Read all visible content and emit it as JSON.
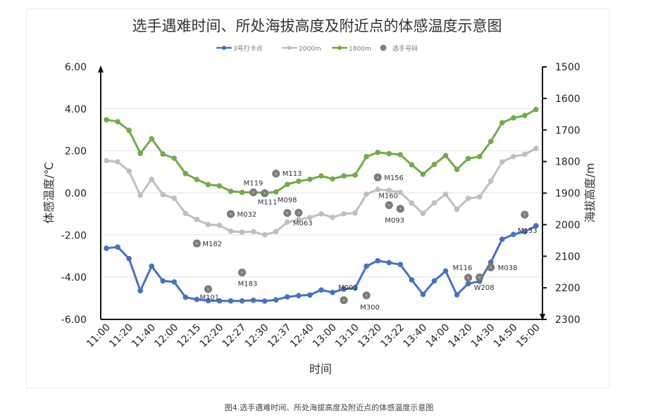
{
  "chart_data": {
    "type": "line",
    "title": "选手遇难时间、所处海拔高度及附近点的体感温度示意图",
    "xlabel": "时间",
    "ylabel": "体感温度/℃",
    "y2label": "海拔高度/m",
    "ylim": [
      -6,
      6
    ],
    "y2lim": [
      1500,
      2300
    ],
    "y2_inverted": true,
    "yticks": [
      "6.00",
      "4.00",
      "2.00",
      "0.00",
      "-2.00",
      "-4.00",
      "-6.00"
    ],
    "y2ticks": [
      "1500",
      "1600",
      "1700",
      "1800",
      "1900",
      "2000",
      "2100",
      "2200",
      "2300"
    ],
    "x_tick_labels": [
      "11:00",
      "11:20",
      "11:40",
      "12:00",
      "12:15",
      "12:20",
      "12:27",
      "12:30",
      "12:37",
      "12:40",
      "13:00",
      "13:10",
      "13:20",
      "13:22",
      "13:40",
      "14:00",
      "14:20",
      "14:30",
      "14:50",
      "15:00"
    ],
    "n_points": 39,
    "grid": true,
    "legend_position": "top",
    "series": [
      {
        "name": "3号打卡点",
        "color": "#4472C4",
        "values": [
          -2.64,
          -2.58,
          -3.13,
          -4.66,
          -3.49,
          -4.19,
          -4.24,
          -4.97,
          -5.07,
          -5.13,
          -5.14,
          -5.14,
          -5.14,
          -5.11,
          -5.15,
          -5.09,
          -4.95,
          -4.89,
          -4.86,
          -4.62,
          -4.74,
          -4.58,
          -4.53,
          -3.49,
          -3.23,
          -3.32,
          -3.41,
          -4.14,
          -4.83,
          -4.19,
          -3.72,
          -4.85,
          -4.32,
          -4.21,
          -3.3,
          -2.21,
          -1.98,
          -1.85,
          -1.57
        ]
      },
      {
        "name": "2000m",
        "color": "#BFBFBF",
        "values": [
          1.53,
          1.47,
          1.03,
          -0.12,
          0.64,
          -0.09,
          -0.26,
          -0.98,
          -1.27,
          -1.51,
          -1.55,
          -1.83,
          -1.87,
          -1.85,
          -2.0,
          -1.84,
          -1.4,
          -1.27,
          -1.18,
          -1.0,
          -1.17,
          -1.0,
          -0.96,
          -0.07,
          0.16,
          0.11,
          0.02,
          -0.49,
          -0.98,
          -0.48,
          -0.07,
          -0.79,
          -0.27,
          -0.2,
          0.56,
          1.47,
          1.72,
          1.83,
          2.11
        ]
      },
      {
        "name": "1800m",
        "color": "#70AD47",
        "values": [
          3.47,
          3.38,
          2.97,
          1.87,
          2.57,
          1.84,
          1.64,
          0.91,
          0.63,
          0.39,
          0.33,
          0.07,
          0.02,
          0.02,
          -0.01,
          0.04,
          0.4,
          0.55,
          0.64,
          0.8,
          0.66,
          0.8,
          0.84,
          1.72,
          1.92,
          1.86,
          1.81,
          1.33,
          0.88,
          1.35,
          1.77,
          1.11,
          1.63,
          1.72,
          2.44,
          3.33,
          3.56,
          3.67,
          3.96
        ]
      }
    ],
    "scatter": {
      "name": "选手号码",
      "color": "#808080",
      "points": [
        {
          "label": "M182",
          "x": 8.0,
          "y": -2.41
        },
        {
          "label": "M101",
          "x": 9.0,
          "y": -4.58
        },
        {
          "label": "M032",
          "x": 11.0,
          "y": -1.01
        },
        {
          "label": "M183",
          "x": 12.0,
          "y": -3.79
        },
        {
          "label": "M119",
          "x": 13.0,
          "y": 0.02
        },
        {
          "label": "M111",
          "x": 14.0,
          "y": -0.02
        },
        {
          "label": "M113",
          "x": 15.0,
          "y": 0.91
        },
        {
          "label": "M098",
          "x": 16.0,
          "y": -0.96
        },
        {
          "label": "M063",
          "x": 17.0,
          "y": -0.95
        },
        {
          "label": "M001",
          "x": 21.0,
          "y": -5.11
        },
        {
          "label": "M300",
          "x": 23.0,
          "y": -4.88
        },
        {
          "label": "M156",
          "x": 24.0,
          "y": 0.73
        },
        {
          "label": "M160",
          "x": 25.0,
          "y": -0.59
        },
        {
          "label": "M093",
          "x": 26.0,
          "y": -0.76
        },
        {
          "label": "M116",
          "x": 32.0,
          "y": -4.04
        },
        {
          "label": "W208",
          "x": 33.0,
          "y": -4.02
        },
        {
          "label": "M038",
          "x": 34.0,
          "y": -3.55
        },
        {
          "label": "M133",
          "x": 37.0,
          "y": -1.04
        }
      ]
    }
  },
  "caption": "图4.选手遇难时间、所处海拔高度及附近点的体感温度示意图"
}
